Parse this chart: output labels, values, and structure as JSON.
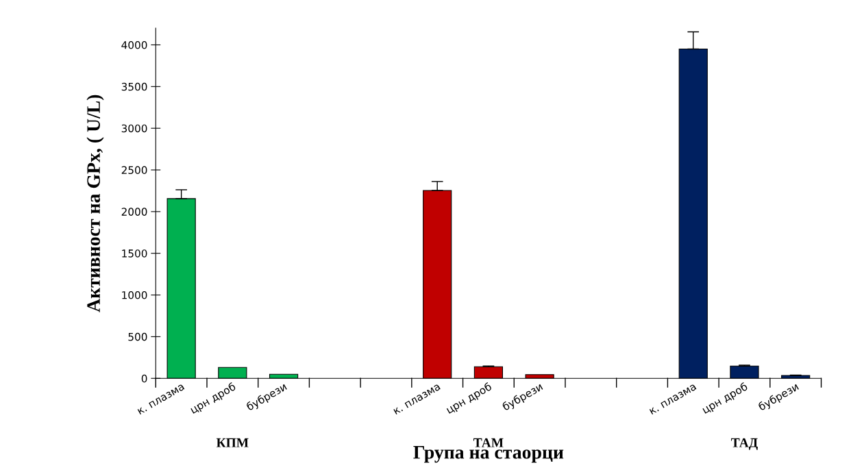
{
  "chart_data": {
    "type": "bar",
    "xlabel": "Група на стаорци",
    "ylabel": "Активност на GPx, ( U/L)",
    "categories": [
      "к. плазма",
      "црн дроб",
      "бубрези",
      null,
      null,
      "к. плазма",
      "црн дроб",
      "бубрези",
      null,
      null,
      "к. плазма",
      "црн дроб",
      "бубрези"
    ],
    "values": [
      2156,
      131,
      49,
      null,
      null,
      2254,
      139,
      45,
      null,
      null,
      3951,
      148,
      35
    ],
    "errors": [
      [
        2156,
        2262
      ],
      null,
      null,
      null,
      null,
      [
        2254,
        2361
      ],
      [
        139,
        149
      ],
      null,
      null,
      null,
      [
        3951,
        4156
      ],
      [
        148,
        158
      ],
      [
        35,
        40
      ]
    ],
    "colors": [
      "#00b050",
      "#00b050",
      "#00b050",
      null,
      null,
      "#c00000",
      "#c00000",
      "#c00000",
      null,
      null,
      "#002060",
      "#002060",
      "#002060"
    ],
    "annotations": [
      "КПМ",
      "ТАМ",
      "ТАД"
    ],
    "ylim": [
      0,
      4200
    ],
    "yticks": [
      0,
      500,
      1000,
      1500,
      2000,
      2500,
      3000,
      3500,
      4000
    ],
    "grid": false,
    "legend": false
  }
}
